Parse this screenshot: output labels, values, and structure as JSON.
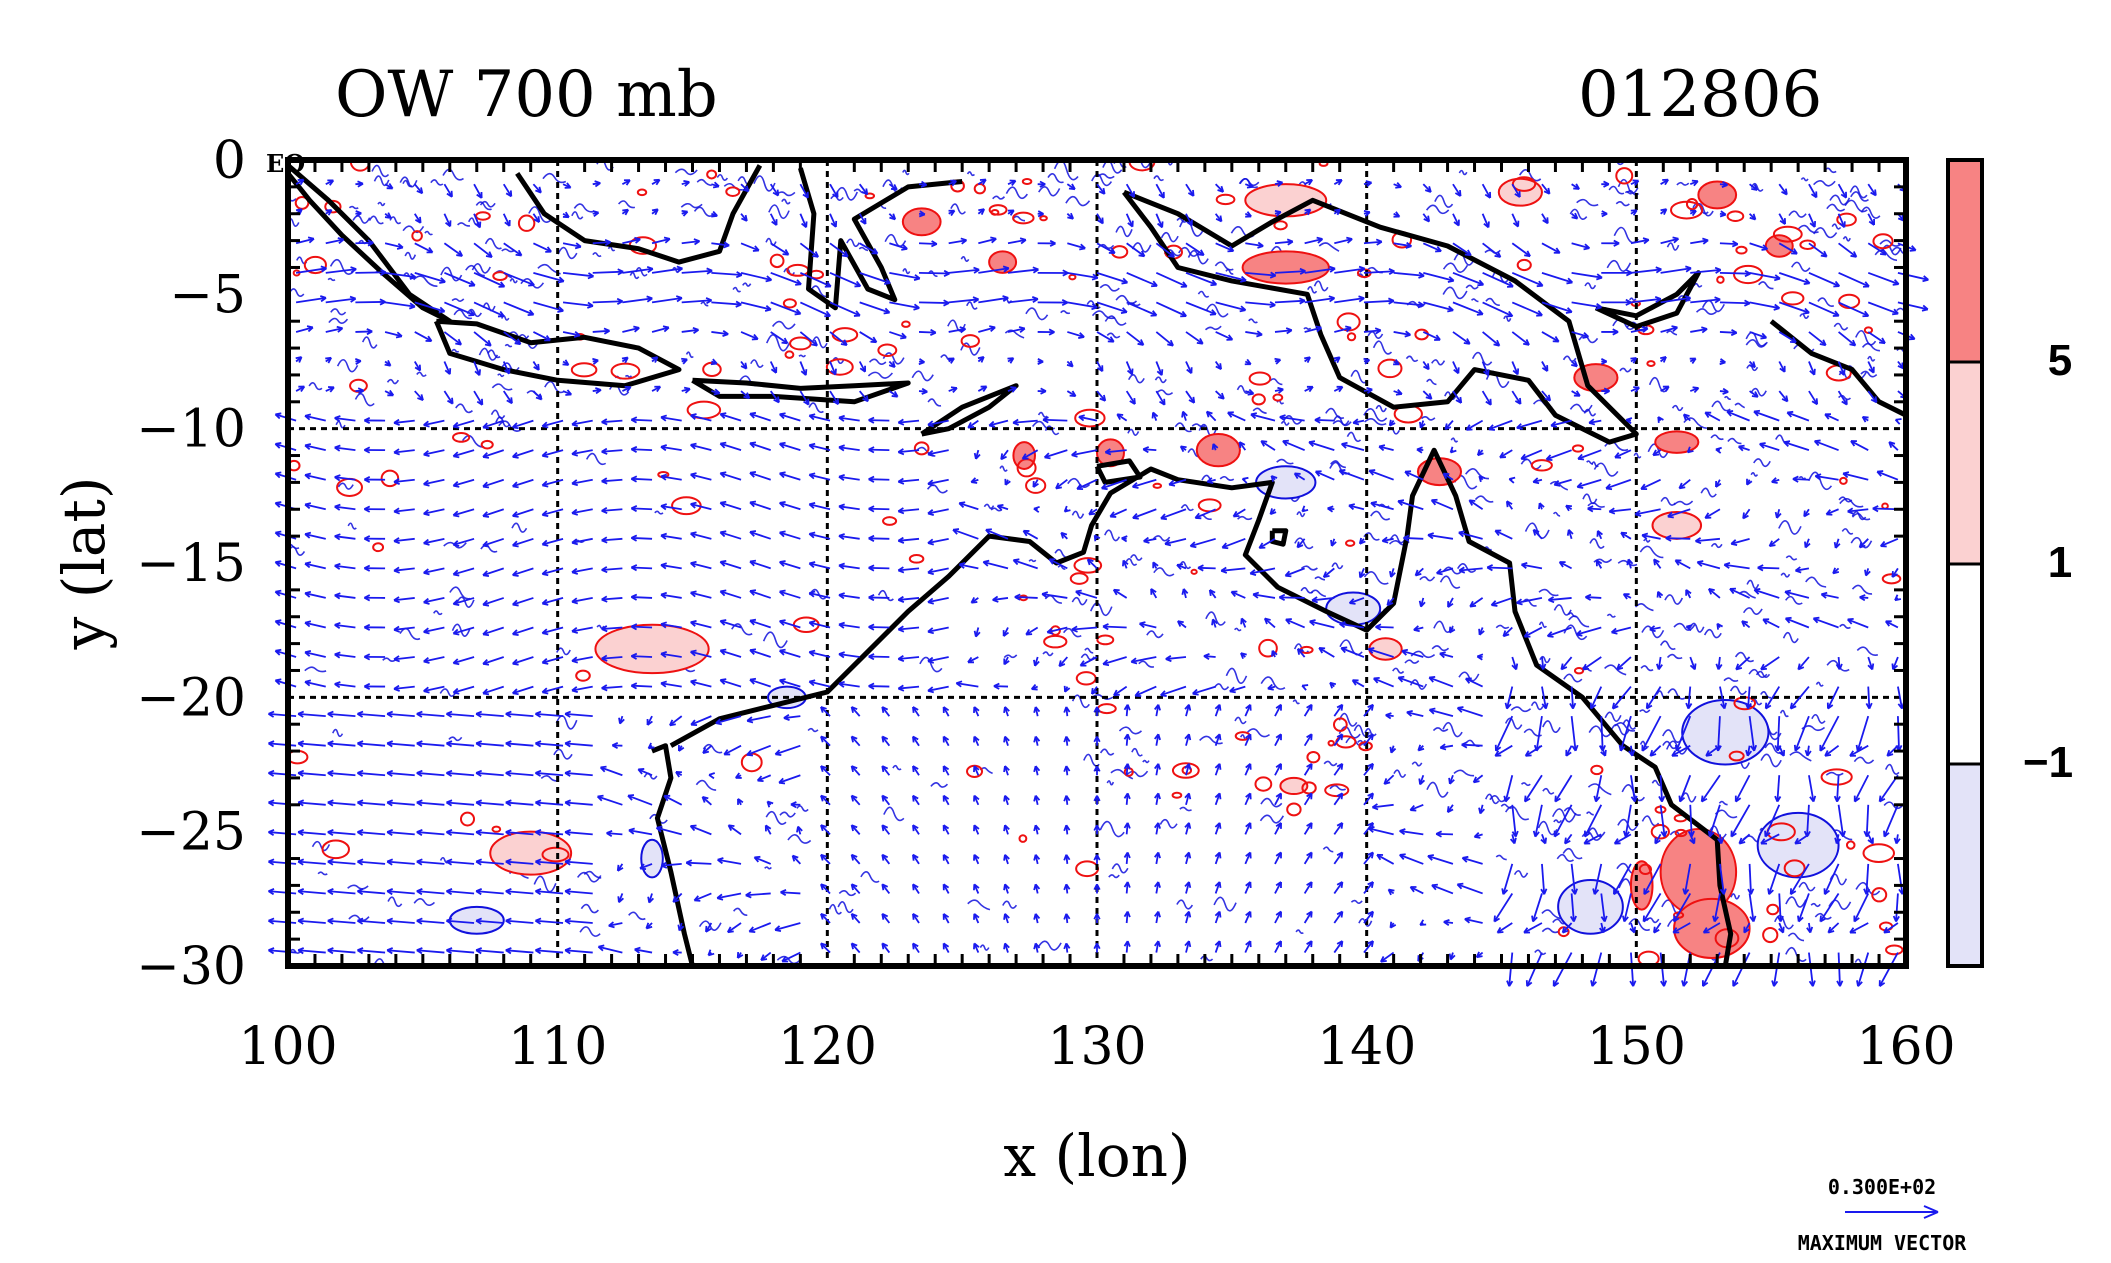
{
  "title_left": "OW 700 mb",
  "title_right": "012806",
  "eq_label": "EQ",
  "colors": {
    "strong_positive": "#f78383",
    "positive": "#fbd1d1",
    "negative": "#e3e3f8",
    "red_contour": "#ee1111",
    "blue_contour": "#1111dd",
    "vector": "#1a1aee",
    "coast": "#000000"
  },
  "colorbar": {
    "labels": [
      "5",
      "1",
      "−1"
    ],
    "values": [
      5,
      1,
      -1
    ],
    "fills": [
      "strong_positive",
      "positive",
      "white",
      "negative"
    ]
  },
  "vector_key": {
    "magnitude": "0.300E+02",
    "label": "MAXIMUM VECTOR"
  },
  "chart_data": {
    "type": "contour-vector-map",
    "xlabel": "x (lon)",
    "ylabel": "y (lat)",
    "xlim": [
      100,
      160
    ],
    "ylim": [
      -30,
      0
    ],
    "x_ticks": [
      100,
      110,
      120,
      130,
      140,
      150,
      160
    ],
    "x_tick_labels": [
      "100",
      "110",
      "120",
      "130",
      "140",
      "150",
      "160"
    ],
    "y_ticks": [
      0,
      -5,
      -10,
      -15,
      -20,
      -25,
      -30
    ],
    "y_tick_labels": [
      "0",
      "−5",
      "−10",
      "−15",
      "−20",
      "−25",
      "−30"
    ],
    "grid_lon": [
      110,
      120,
      130,
      140,
      150
    ],
    "grid_lat": [
      -10,
      -20
    ],
    "contour_levels": [
      -1,
      1,
      5
    ],
    "shaded_blobs": [
      {
        "lon": 113.5,
        "lat": -18.2,
        "rx": 2.1,
        "ry": 0.9,
        "level": 1
      },
      {
        "lon": 109.0,
        "lat": -25.8,
        "rx": 1.5,
        "ry": 0.8,
        "level": 1
      },
      {
        "lon": 123.5,
        "lat": -2.3,
        "rx": 0.7,
        "ry": 0.5,
        "level": 5
      },
      {
        "lon": 126.5,
        "lat": -3.8,
        "rx": 0.5,
        "ry": 0.4,
        "level": 5
      },
      {
        "lon": 137.0,
        "lat": -4.0,
        "rx": 1.6,
        "ry": 0.6,
        "level": 5
      },
      {
        "lon": 142.7,
        "lat": -11.6,
        "rx": 0.8,
        "ry": 0.5,
        "level": 5
      },
      {
        "lon": 134.5,
        "lat": -10.8,
        "rx": 0.8,
        "ry": 0.6,
        "level": 5
      },
      {
        "lon": 130.5,
        "lat": -10.9,
        "rx": 0.5,
        "ry": 0.5,
        "level": 5
      },
      {
        "lon": 127.3,
        "lat": -11.0,
        "rx": 0.4,
        "ry": 0.5,
        "level": 5
      },
      {
        "lon": 148.5,
        "lat": -8.1,
        "rx": 0.8,
        "ry": 0.5,
        "level": 5
      },
      {
        "lon": 151.5,
        "lat": -10.5,
        "rx": 0.8,
        "ry": 0.4,
        "level": 5
      },
      {
        "lon": 152.3,
        "lat": -26.5,
        "rx": 1.4,
        "ry": 1.6,
        "level": 5
      },
      {
        "lon": 152.8,
        "lat": -28.6,
        "rx": 1.4,
        "ry": 1.1,
        "level": 5
      },
      {
        "lon": 150.2,
        "lat": -27.0,
        "rx": 0.4,
        "ry": 0.9,
        "level": 5
      },
      {
        "lon": 153.0,
        "lat": -1.3,
        "rx": 0.7,
        "ry": 0.5,
        "level": 5
      },
      {
        "lon": 155.3,
        "lat": -3.2,
        "rx": 0.5,
        "ry": 0.4,
        "level": 5
      },
      {
        "lon": 145.7,
        "lat": -1.2,
        "rx": 0.8,
        "ry": 0.5,
        "level": 1
      },
      {
        "lon": 151.5,
        "lat": -13.6,
        "rx": 0.9,
        "ry": 0.5,
        "level": 1
      },
      {
        "lon": 140.7,
        "lat": -18.2,
        "rx": 0.6,
        "ry": 0.4,
        "level": 1
      },
      {
        "lon": 137.3,
        "lat": -23.3,
        "rx": 0.5,
        "ry": 0.3,
        "level": 1
      },
      {
        "lon": 137.0,
        "lat": -1.5,
        "rx": 1.5,
        "ry": 0.6,
        "level": 1
      },
      {
        "lon": 156.0,
        "lat": -25.5,
        "rx": 1.5,
        "ry": 1.2,
        "level": -1
      },
      {
        "lon": 153.3,
        "lat": -21.3,
        "rx": 1.6,
        "ry": 1.2,
        "level": -1
      },
      {
        "lon": 148.3,
        "lat": -27.8,
        "rx": 1.2,
        "ry": 1.0,
        "level": -1
      },
      {
        "lon": 139.5,
        "lat": -16.7,
        "rx": 1.0,
        "ry": 0.6,
        "level": -1
      },
      {
        "lon": 137.0,
        "lat": -12.0,
        "rx": 1.1,
        "ry": 0.6,
        "level": -1
      },
      {
        "lon": 118.5,
        "lat": -20.0,
        "rx": 0.7,
        "ry": 0.4,
        "level": -1
      },
      {
        "lon": 113.5,
        "lat": -26.0,
        "rx": 0.4,
        "ry": 0.7,
        "level": -1
      },
      {
        "lon": 107.0,
        "lat": -28.3,
        "rx": 1.0,
        "ry": 0.5,
        "level": -1
      }
    ]
  }
}
